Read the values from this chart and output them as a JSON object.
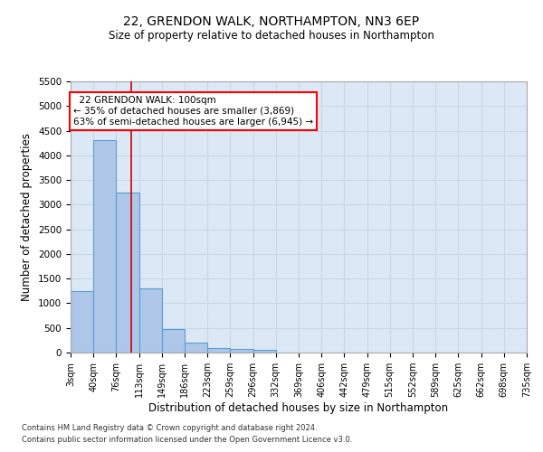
{
  "title1": "22, GRENDON WALK, NORTHAMPTON, NN3 6EP",
  "title2": "Size of property relative to detached houses in Northampton",
  "xlabel": "Distribution of detached houses by size in Northampton",
  "ylabel": "Number of detached properties",
  "footer1": "Contains HM Land Registry data © Crown copyright and database right 2024.",
  "footer2": "Contains public sector information licensed under the Open Government Licence v3.0.",
  "annotation_line1": "22 GRENDON WALK: 100sqm",
  "annotation_line2": "← 35% of detached houses are smaller (3,869)",
  "annotation_line3": "63% of semi-detached houses are larger (6,945) →",
  "bar_edges": [
    3,
    40,
    76,
    113,
    149,
    186,
    223,
    259,
    296,
    332,
    369,
    406,
    442,
    479,
    515,
    552,
    589,
    625,
    662,
    698,
    735
  ],
  "bar_heights": [
    1250,
    4300,
    3250,
    1300,
    475,
    200,
    100,
    75,
    60,
    0,
    0,
    0,
    0,
    0,
    0,
    0,
    0,
    0,
    0,
    0
  ],
  "bar_color": "#aec6e8",
  "bar_edge_color": "#5a9fd4",
  "vline_x": 100,
  "vline_color": "#cc0000",
  "ylim": [
    0,
    5500
  ],
  "yticks": [
    0,
    500,
    1000,
    1500,
    2000,
    2500,
    3000,
    3500,
    4000,
    4500,
    5000,
    5500
  ],
  "grid_color": "#c8d8e8",
  "bg_color": "#dce8f5"
}
